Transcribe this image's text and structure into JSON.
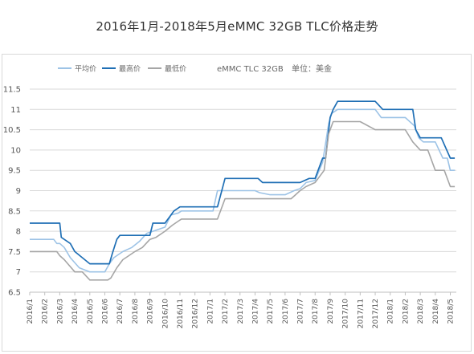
{
  "chart_data": {
    "type": "line",
    "title": "2016年1月-2018年5月eMMC 32GB TLC价格走势",
    "annotations": [
      "eMMC TLC 32GB",
      "单位：美金"
    ],
    "ylim": [
      6.5,
      11.5
    ],
    "yticks": [
      "11.5",
      "11",
      "10.5",
      "10",
      "9.5",
      "9",
      "8.5",
      "8",
      "7.5",
      "7",
      "6.5"
    ],
    "xlim": [
      0,
      28.4
    ],
    "xticks": [
      "2016/1",
      "2016/2",
      "2016/3",
      "2016/4",
      "2016/5",
      "2016/6",
      "2016/7",
      "2016/8",
      "2016/9",
      "2016/10",
      "2016/11",
      "2016/12",
      "2017/1",
      "2017/2",
      "2017/3",
      "2017/4",
      "2017/5",
      "2017/6",
      "2017/7",
      "2017/8",
      "2017/9",
      "2017/10",
      "2017/11",
      "2017/12",
      "2018/1",
      "2018/2",
      "2018/3",
      "2018/4",
      "2018/5"
    ],
    "grid": "horizontal",
    "legend_position": "top-left",
    "series": [
      {
        "name": "平均价",
        "color": "#9dc3e6",
        "x": [
          0,
          1.6,
          1.8,
          2.0,
          2.3,
          2.7,
          3.3,
          4.0,
          4.9,
          5.0,
          5.3,
          5.6,
          6.2,
          6.8,
          7.3,
          7.8,
          8.2,
          9.0,
          9.4,
          9.9,
          10.1,
          11.0,
          12.2,
          12.5,
          13.0,
          14.0,
          15.0,
          15.3,
          16.0,
          17.0,
          17.6,
          18.0,
          18.4,
          19.0,
          19.5,
          19.9,
          20.1,
          20.5,
          21.0,
          22.0,
          23.0,
          23.4,
          24.0,
          25.0,
          25.6,
          25.9,
          26.2,
          27.0,
          27.5,
          27.8,
          28.0,
          28.3
        ],
        "values": [
          7.8,
          7.8,
          7.7,
          7.7,
          7.6,
          7.35,
          7.1,
          7.0,
          7.0,
          7.0,
          7.2,
          7.35,
          7.5,
          7.6,
          7.75,
          7.95,
          8.0,
          8.1,
          8.4,
          8.45,
          8.5,
          8.5,
          8.5,
          9.0,
          9.0,
          9.0,
          9.0,
          8.95,
          8.9,
          8.9,
          9.0,
          9.05,
          9.2,
          9.25,
          9.7,
          10.65,
          10.9,
          11.0,
          11.0,
          11.0,
          11.0,
          10.8,
          10.8,
          10.8,
          10.6,
          10.3,
          10.2,
          10.2,
          9.8,
          9.8,
          9.5,
          9.5
        ]
      },
      {
        "name": "最高价",
        "color": "#1f6fb5",
        "x": [
          0,
          1.6,
          1.7,
          2.0,
          2.1,
          2.7,
          3.0,
          4.0,
          5.0,
          5.3,
          5.5,
          5.8,
          6.0,
          6.5,
          7.5,
          8.0,
          8.2,
          9.0,
          9.4,
          9.6,
          10.0,
          11.0,
          12.0,
          12.5,
          13.0,
          14.0,
          15.0,
          15.2,
          15.5,
          16.0,
          17.0,
          17.6,
          18.0,
          18.6,
          19.0,
          19.5,
          19.7,
          20.0,
          20.2,
          20.5,
          21.0,
          22.0,
          23.0,
          23.5,
          24.0,
          25.0,
          25.5,
          25.7,
          26.0,
          26.5,
          27.0,
          27.4,
          28.0,
          28.3
        ],
        "values": [
          8.2,
          8.2,
          8.2,
          8.2,
          7.85,
          7.7,
          7.5,
          7.2,
          7.2,
          7.2,
          7.45,
          7.8,
          7.9,
          7.9,
          7.9,
          7.9,
          8.2,
          8.2,
          8.4,
          8.5,
          8.6,
          8.6,
          8.6,
          8.6,
          9.3,
          9.3,
          9.3,
          9.3,
          9.2,
          9.2,
          9.2,
          9.2,
          9.2,
          9.3,
          9.3,
          9.8,
          9.8,
          10.8,
          11.0,
          11.2,
          11.2,
          11.2,
          11.2,
          11.0,
          11.0,
          11.0,
          11.0,
          10.5,
          10.3,
          10.3,
          10.3,
          10.3,
          9.8,
          9.8
        ]
      },
      {
        "name": "最低价",
        "color": "#a6a6a6",
        "x": [
          0,
          1.6,
          1.8,
          2.0,
          2.3,
          3.0,
          3.5,
          4.0,
          5.0,
          5.2,
          5.4,
          5.8,
          6.2,
          6.6,
          7.0,
          7.5,
          8.0,
          8.4,
          9.0,
          9.5,
          9.9,
          10.1,
          11.0,
          12.5,
          13.0,
          14.0,
          15.0,
          15.2,
          16.0,
          17.0,
          17.4,
          17.7,
          18.0,
          18.4,
          19.0,
          19.6,
          19.9,
          20.2,
          20.5,
          21.0,
          22.0,
          23.0,
          23.5,
          24.0,
          25.0,
          25.5,
          26.0,
          26.5,
          27.0,
          27.6,
          28.0,
          28.3
        ],
        "values": [
          7.5,
          7.5,
          7.5,
          7.4,
          7.3,
          7.0,
          7.0,
          6.8,
          6.8,
          6.8,
          6.85,
          7.1,
          7.3,
          7.4,
          7.5,
          7.6,
          7.8,
          7.85,
          8.0,
          8.15,
          8.25,
          8.3,
          8.3,
          8.3,
          8.8,
          8.8,
          8.8,
          8.8,
          8.8,
          8.8,
          8.8,
          8.9,
          9.0,
          9.1,
          9.2,
          9.5,
          10.4,
          10.7,
          10.7,
          10.7,
          10.7,
          10.5,
          10.5,
          10.5,
          10.5,
          10.2,
          10.0,
          10.0,
          9.5,
          9.5,
          9.1,
          9.1
        ]
      }
    ]
  }
}
